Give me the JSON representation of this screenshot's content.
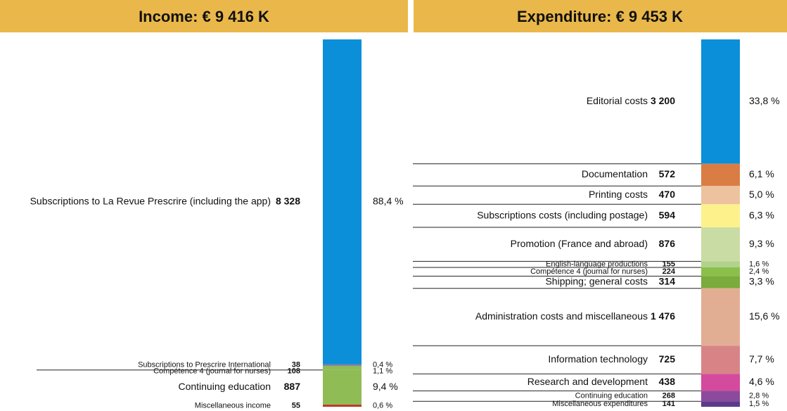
{
  "chart_data": [
    {
      "type": "stacked_bar",
      "title": "Income: € 9 416 K",
      "categories": [
        "Subscriptions to La Revue Prescrire (including the app)",
        "Subscriptions to Prescrire International",
        "Compétence 4 (journal for nurses)",
        "Continuing education",
        "Miscellaneous income"
      ],
      "values": [
        8328,
        38,
        108,
        887,
        55
      ],
      "value_labels": [
        "8 328",
        "38",
        "108",
        "887",
        "55"
      ],
      "percentages": [
        88.4,
        0.4,
        1.1,
        9.4,
        0.6
      ],
      "percentage_labels": [
        "88,4 %",
        "0,4 %",
        "1,1 %",
        "9,4 %",
        "0,6 %"
      ],
      "colors": [
        "#0a8fd8",
        "#7a6eab",
        "#8fbc55",
        "#8fbc55",
        "#c0392b"
      ]
    },
    {
      "type": "stacked_bar",
      "title": "Expenditure: € 9 453 K",
      "categories": [
        "Editorial costs",
        "Documentation",
        "Printing costs",
        "Subscriptions costs (including postage)",
        "Promotion (France and abroad)",
        "English-language productions",
        "Compétence 4 (journal for nurses)",
        "Shipping; general costs",
        "Administration costs and miscellaneous",
        "Information technology",
        "Research and development",
        "Continuing education",
        "Miscellaneous expenditures"
      ],
      "values": [
        3200,
        572,
        470,
        594,
        876,
        155,
        224,
        314,
        1476,
        725,
        438,
        268,
        141
      ],
      "value_labels": [
        "3 200",
        "572",
        "470",
        "594",
        "876",
        "155",
        "224",
        "314",
        "1 476",
        "725",
        "438",
        "268",
        "141"
      ],
      "percentages": [
        33.8,
        6.1,
        5.0,
        6.3,
        9.3,
        1.6,
        2.4,
        3.3,
        15.6,
        7.7,
        4.6,
        2.8,
        1.5
      ],
      "percentage_labels": [
        "33,8 %",
        "6,1 %",
        "5,0 %",
        "6,3 %",
        "9,3 %",
        "1,6 %",
        "2,4 %",
        "3,3 %",
        "15,6 %",
        "7,7 %",
        "4,6 %",
        "2,8 %",
        "1,5 %"
      ],
      "colors": [
        "#0a8fd8",
        "#d97d45",
        "#ecc39e",
        "#fdf18c",
        "#c9dca4",
        "#b0d28a",
        "#8bbf4b",
        "#7aab3c",
        "#e2ae93",
        "#d88486",
        "#d44a9c",
        "#8b4a9c",
        "#5c3a8c"
      ]
    }
  ]
}
